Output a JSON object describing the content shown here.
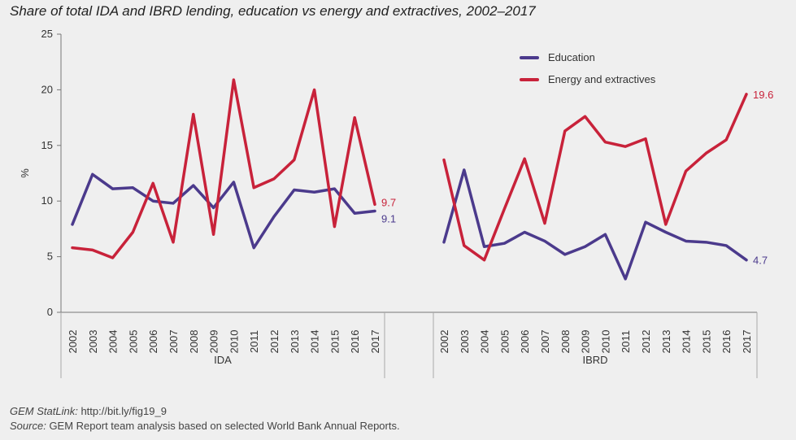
{
  "title": "Share of total IDA and IBRD lending, education vs energy and extractives, 2002–2017",
  "footer": {
    "statlink_label": "GEM StatLink:",
    "statlink_url": "http://bit.ly/fig19_9",
    "source_label": "Source:",
    "source_text": "GEM Report team analysis based on selected World Bank Annual Reports."
  },
  "colors": {
    "education": "#4b3a8c",
    "energy": "#c8223a",
    "background": "#efefef",
    "axis": "#888888"
  },
  "chart_data": {
    "type": "line",
    "ylabel": "%",
    "ylim": [
      0,
      25
    ],
    "yticks": [
      0,
      5,
      10,
      15,
      20,
      25
    ],
    "grid": false,
    "legend_position": "top-right",
    "legend": [
      "Education",
      "Energy and extractives"
    ],
    "panels": [
      {
        "name": "IDA",
        "x": [
          "2002",
          "2003",
          "2004",
          "2005",
          "2006",
          "2007",
          "2008",
          "2009",
          "2010",
          "2011",
          "2012",
          "2013",
          "2014",
          "2015",
          "2016",
          "2017"
        ],
        "series": [
          {
            "name": "Education",
            "color_key": "education",
            "values": [
              7.9,
              12.4,
              11.1,
              11.2,
              10.0,
              9.8,
              11.4,
              9.4,
              11.7,
              5.8,
              8.6,
              11.0,
              10.8,
              11.1,
              8.9,
              9.1
            ],
            "end_label": "9.1"
          },
          {
            "name": "Energy and extractives",
            "color_key": "energy",
            "values": [
              5.8,
              5.6,
              4.9,
              7.2,
              11.6,
              6.3,
              17.8,
              7.0,
              20.9,
              11.2,
              12.0,
              13.7,
              20.0,
              7.7,
              17.5,
              9.7
            ],
            "end_label": "9.7"
          }
        ]
      },
      {
        "name": "IBRD",
        "x": [
          "2002",
          "2003",
          "2004",
          "2005",
          "2006",
          "2007",
          "2008",
          "2009",
          "2010",
          "2011",
          "2012",
          "2013",
          "2014",
          "2015",
          "2016",
          "2017"
        ],
        "series": [
          {
            "name": "Education",
            "color_key": "education",
            "values": [
              6.3,
              12.8,
              5.9,
              6.2,
              7.2,
              6.4,
              5.2,
              5.9,
              7.0,
              3.0,
              8.1,
              7.2,
              6.4,
              6.3,
              6.0,
              4.7
            ],
            "end_label": "4.7"
          },
          {
            "name": "Energy and extractives",
            "color_key": "energy",
            "values": [
              13.7,
              6.0,
              4.7,
              9.3,
              13.8,
              8.0,
              16.3,
              17.6,
              15.3,
              14.9,
              15.6,
              7.9,
              12.7,
              14.3,
              15.5,
              19.6
            ],
            "end_label": "19.6"
          }
        ]
      }
    ]
  }
}
